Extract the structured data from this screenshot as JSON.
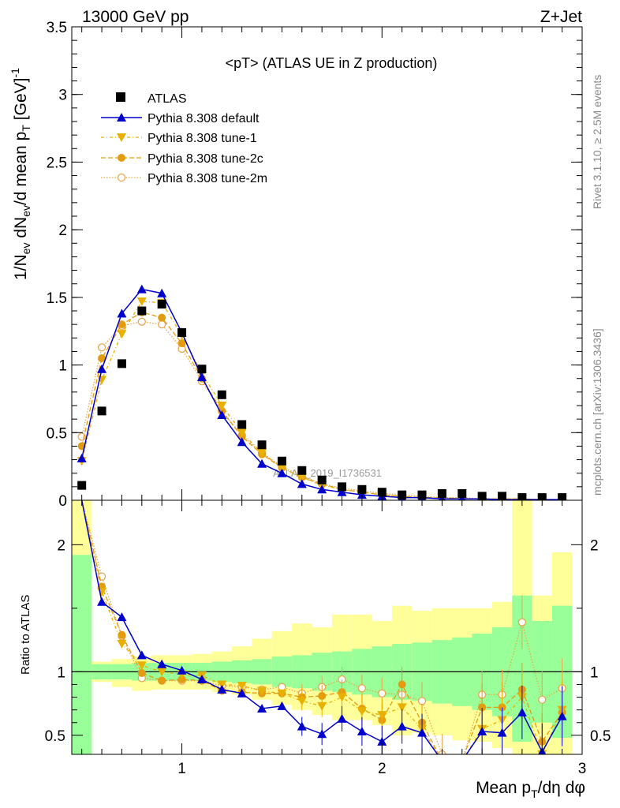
{
  "header": {
    "energy_label": "13000 GeV pp",
    "process_label": "Z+Jet",
    "plot_title": "<pT> (ATLAS UE in Z production)",
    "side_rivet": "Rivet 3.1.10, ≥ 2.5M events",
    "side_source": "mcplots.cern.ch [arXiv:1306.3436]",
    "watermark": "ATLAS_2019_I1736531"
  },
  "legend": {
    "atlas": "ATLAS",
    "default": "Pythia 8.308 default",
    "tune1": "Pythia 8.308 tune-1",
    "tune2c": "Pythia 8.308 tune-2c",
    "tune2m": "Pythia 8.308 tune-2m"
  },
  "colors": {
    "atlas": "#000000",
    "default": "#0000cc",
    "tune1": "#e8b000",
    "tune2c": "#e39c12",
    "tune2m": "#e8a64a",
    "band_inner": "#99ff99",
    "band_outer": "#ffff99"
  },
  "chart_data": [
    {
      "type": "scatter",
      "panel": "main",
      "ylabel": "1/N_ev dN_ev/d mean p_T [GeV]^-1",
      "xlim": [
        0.45,
        3.0
      ],
      "ylim": [
        0,
        3.5
      ],
      "yticks": [
        "0",
        "0.5",
        "1",
        "1.5",
        "2",
        "2.5",
        "3",
        "3.5"
      ],
      "x": [
        0.5,
        0.6,
        0.7,
        0.8,
        0.9,
        1.0,
        1.1,
        1.2,
        1.3,
        1.4,
        1.5,
        1.6,
        1.7,
        1.8,
        1.9,
        2.0,
        2.1,
        2.2,
        2.3,
        2.4,
        2.5,
        2.6,
        2.7,
        2.8,
        2.9
      ],
      "series": [
        {
          "name": "ATLAS",
          "values": [
            0.11,
            0.66,
            1.01,
            1.4,
            1.45,
            1.24,
            0.97,
            0.78,
            0.56,
            0.41,
            0.29,
            0.22,
            0.15,
            0.1,
            0.08,
            0.06,
            0.04,
            0.04,
            0.05,
            0.05,
            0.03,
            0.03,
            0.02,
            0.02,
            0.02
          ]
        },
        {
          "name": "Pythia 8.308 default",
          "values": [
            0.31,
            0.97,
            1.38,
            1.56,
            1.53,
            1.24,
            0.91,
            0.63,
            0.43,
            0.27,
            0.2,
            0.12,
            0.08,
            0.06,
            0.04,
            0.03,
            0.02,
            0.02,
            0.01,
            0.01,
            0.01,
            0.005,
            0.005,
            0.005,
            0.005
          ]
        },
        {
          "name": "Pythia 8.308 tune-1",
          "values": [
            0.29,
            0.89,
            1.23,
            1.47,
            1.46,
            1.22,
            0.94,
            0.7,
            0.5,
            0.35,
            0.24,
            0.17,
            0.11,
            0.08,
            0.06,
            0.04,
            0.03,
            0.02,
            0.02,
            0.01,
            0.01,
            0.01,
            0.01,
            0.005,
            0.005
          ]
        },
        {
          "name": "Pythia 8.308 tune-2c",
          "values": [
            0.4,
            1.05,
            1.3,
            1.39,
            1.35,
            1.16,
            0.9,
            0.66,
            0.47,
            0.34,
            0.24,
            0.17,
            0.12,
            0.08,
            0.06,
            0.04,
            0.03,
            0.02,
            0.02,
            0.01,
            0.01,
            0.01,
            0.01,
            0.005,
            0.005
          ]
        },
        {
          "name": "Pythia 8.308 tune-2m",
          "values": [
            0.47,
            1.13,
            1.29,
            1.32,
            1.3,
            1.12,
            0.88,
            0.66,
            0.48,
            0.35,
            0.25,
            0.18,
            0.12,
            0.09,
            0.07,
            0.05,
            0.04,
            0.03,
            0.02,
            0.02,
            0.01,
            0.01,
            0.01,
            0.005,
            0.005
          ]
        }
      ]
    },
    {
      "type": "line",
      "panel": "ratio",
      "xlabel": "Mean p_T/dη dφ",
      "ylabel": "Ratio to ATLAS",
      "xlim": [
        0.45,
        3.0
      ],
      "ylim": [
        0.35,
        2.35
      ],
      "yticks": [
        "0.5",
        "1",
        "2"
      ],
      "xticks": [
        "1",
        "2",
        "3"
      ],
      "reference_line": 1,
      "x": [
        0.5,
        0.6,
        0.7,
        0.8,
        0.9,
        1.0,
        1.1,
        1.2,
        1.3,
        1.4,
        1.5,
        1.6,
        1.7,
        1.8,
        1.9,
        2.0,
        2.1,
        2.2,
        2.3,
        2.4,
        2.5,
        2.6,
        2.7,
        2.8,
        2.9
      ],
      "bands": {
        "inner_upper": [
          1.92,
          1.06,
          1.06,
          1.07,
          1.07,
          1.07,
          1.07,
          1.08,
          1.09,
          1.1,
          1.12,
          1.13,
          1.15,
          1.16,
          1.18,
          1.2,
          1.22,
          1.23,
          1.25,
          1.27,
          1.3,
          1.35,
          1.6,
          1.4,
          1.52
        ],
        "inner_lower": [
          0.3,
          0.94,
          0.94,
          0.93,
          0.93,
          0.93,
          0.93,
          0.92,
          0.91,
          0.9,
          0.88,
          0.87,
          0.85,
          0.84,
          0.82,
          0.8,
          0.78,
          0.77,
          0.75,
          0.73,
          0.7,
          0.65,
          0.45,
          0.6,
          0.48
        ],
        "outer_upper": [
          2.35,
          1.08,
          1.1,
          1.12,
          1.13,
          1.13,
          1.14,
          1.16,
          1.2,
          1.26,
          1.32,
          1.38,
          1.35,
          1.45,
          1.45,
          1.4,
          1.52,
          1.48,
          1.5,
          1.5,
          1.5,
          1.55,
          2.35,
          1.6,
          1.94
        ],
        "outer_lower": [
          0.3,
          0.92,
          0.88,
          0.85,
          0.86,
          0.86,
          0.86,
          0.84,
          0.82,
          0.78,
          0.74,
          0.7,
          0.66,
          0.62,
          0.62,
          0.58,
          0.5,
          0.52,
          0.5,
          0.46,
          0.45,
          0.4,
          0.3,
          0.35,
          0.3
        ]
      },
      "series": [
        {
          "name": "Pythia 8.308 default",
          "values": [
            2.7,
            1.55,
            1.43,
            1.13,
            1.06,
            1.01,
            0.94,
            0.86,
            0.83,
            0.71,
            0.73,
            0.57,
            0.51,
            0.63,
            0.53,
            0.45,
            0.57,
            0.52,
            0.15,
            0.15,
            0.53,
            0.52,
            0.68,
            0.37,
            0.65
          ]
        },
        {
          "name": "Pythia 8.308 tune-1",
          "values": [
            2.5,
            1.63,
            1.22,
            1.05,
            1.0,
            0.98,
            0.97,
            0.9,
            0.89,
            0.85,
            0.83,
            0.77,
            0.73,
            0.8,
            0.69,
            0.66,
            0.72,
            0.55,
            0.3,
            0.22,
            0.55,
            0.62,
            0.8,
            0.35,
            0.7
          ]
        },
        {
          "name": "Pythia 8.308 tune-2c",
          "values": [
            3.0,
            1.67,
            1.29,
            0.99,
            0.93,
            0.94,
            0.93,
            0.85,
            0.84,
            0.83,
            0.83,
            0.8,
            0.81,
            0.84,
            0.71,
            0.62,
            0.9,
            0.6,
            0.3,
            0.25,
            0.72,
            0.72,
            0.86,
            0.45,
            0.68
          ]
        },
        {
          "name": "Pythia 8.308 tune-2m",
          "values": [
            3.3,
            1.75,
            1.28,
            0.95,
            0.93,
            0.93,
            0.93,
            0.89,
            0.88,
            0.86,
            0.88,
            0.83,
            0.88,
            0.94,
            0.87,
            0.83,
            0.82,
            0.77,
            0.35,
            0.3,
            0.82,
            0.82,
            1.39,
            0.78,
            0.87
          ]
        }
      ]
    }
  ]
}
